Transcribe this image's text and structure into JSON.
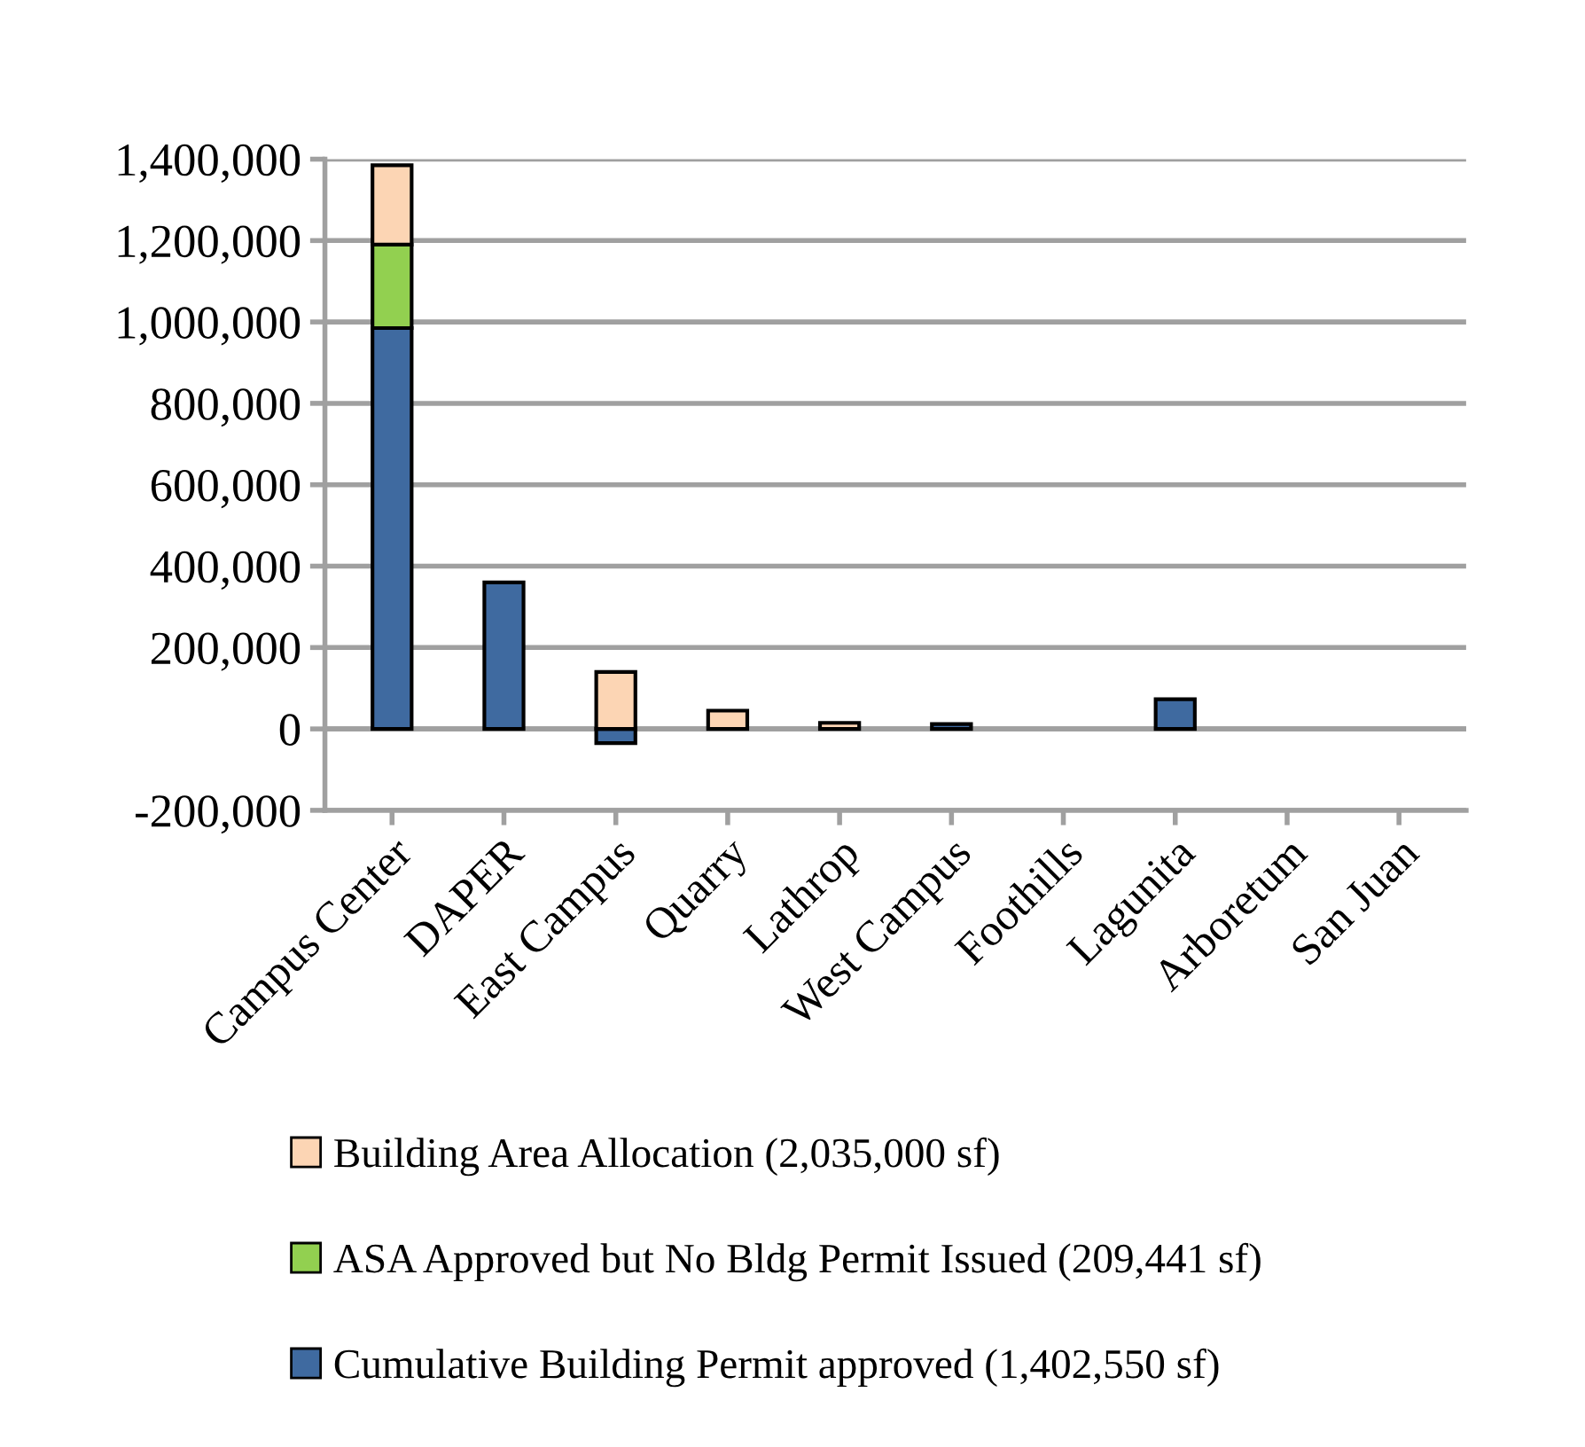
{
  "chart_data": {
    "type": "bar",
    "stacked": true,
    "categories": [
      "Campus Center",
      "DAPER",
      "East Campus",
      "Quarry",
      "Lathrop",
      "West Campus",
      "Foothills",
      "Lagunita",
      "Arboretum",
      "San Juan"
    ],
    "series": [
      {
        "name": "Cumulative Building Permit approved (1,402,550 sf)",
        "color": "#3f6aa0",
        "values": [
          985000,
          360000,
          -35000,
          0,
          0,
          12000,
          0,
          73000,
          0,
          0
        ]
      },
      {
        "name": "ASA Approved but No Bldg Permit Issued (209,441 sf)",
        "color": "#92d050",
        "values": [
          205000,
          0,
          0,
          0,
          0,
          0,
          0,
          0,
          0,
          0
        ]
      },
      {
        "name": "Building Area Allocation (2,035,000 sf)",
        "color": "#fcd5b4",
        "values": [
          195000,
          0,
          140000,
          45000,
          15000,
          0,
          0,
          0,
          0,
          0
        ]
      }
    ],
    "ylim": [
      -200000,
      1400000
    ],
    "yticks": [
      {
        "value": -200000,
        "label": "-200,000"
      },
      {
        "value": 0,
        "label": "0"
      },
      {
        "value": 200000,
        "label": "200,000"
      },
      {
        "value": 400000,
        "label": "400,000"
      },
      {
        "value": 600000,
        "label": "600,000"
      },
      {
        "value": 800000,
        "label": "800,000"
      },
      {
        "value": 1000000,
        "label": "1,000,000"
      },
      {
        "value": 1200000,
        "label": "1,200,000"
      },
      {
        "value": 1400000,
        "label": "1,400,000"
      }
    ],
    "grid": "y",
    "legend": "bottom"
  }
}
